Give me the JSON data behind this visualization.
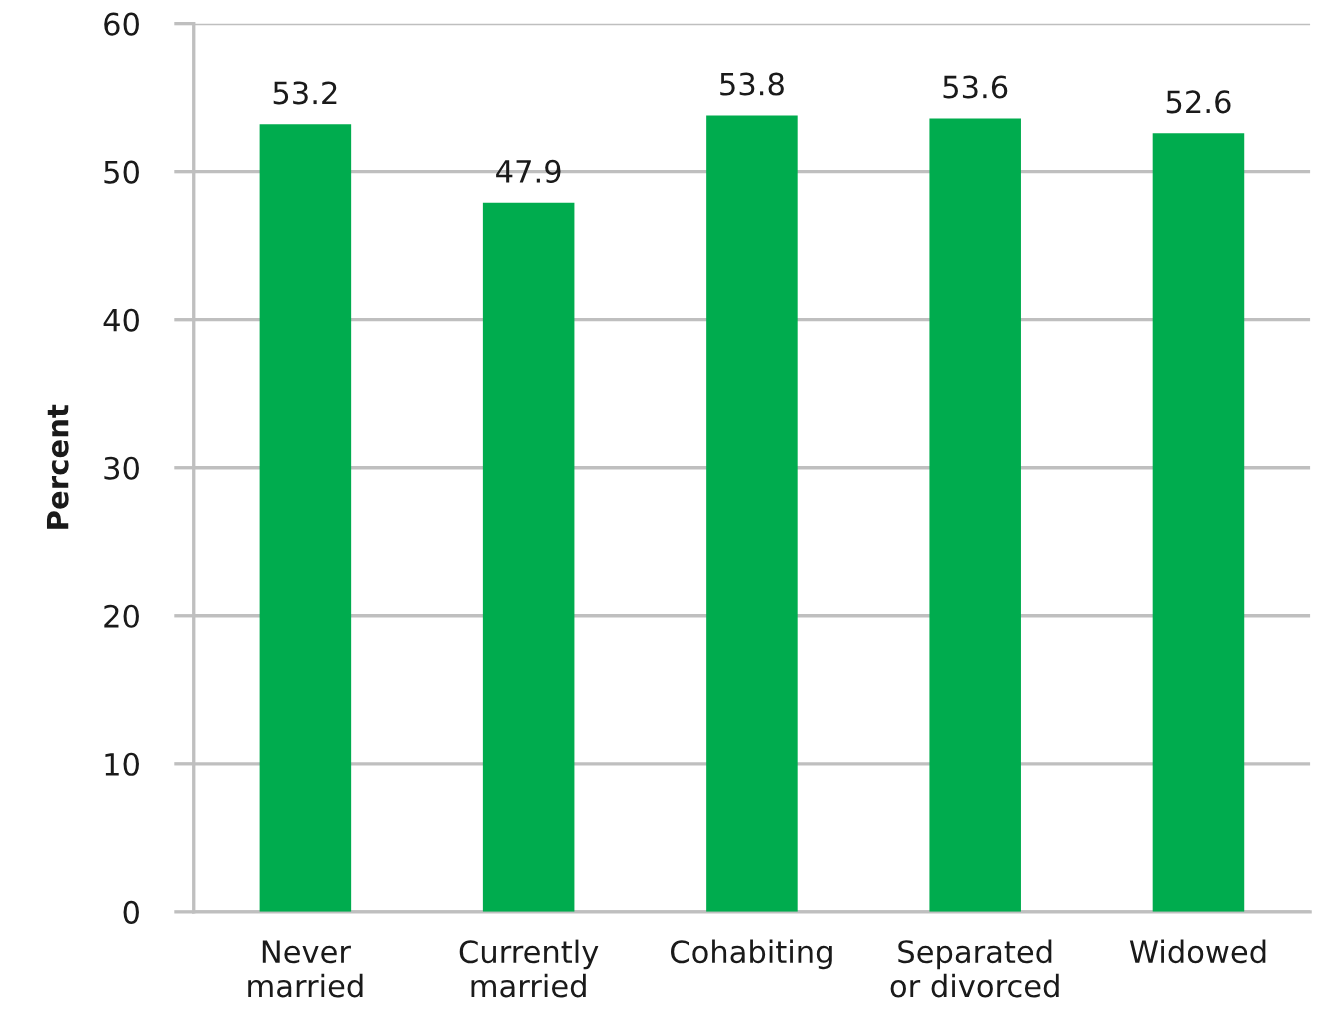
{
  "chart_data": {
    "type": "bar",
    "ylabel": "Percent",
    "categories": [
      "Never\nmarried",
      "Currently\nmarried",
      "Cohabiting",
      "Separated\nor divorced",
      "Widowed"
    ],
    "values": [
      53.2,
      47.9,
      53.8,
      53.6,
      52.6
    ],
    "color": "#00ac4e",
    "ylim": [
      0,
      60
    ],
    "yticks": [
      0,
      10,
      20,
      30,
      40,
      50,
      60
    ],
    "grid": "y",
    "data_labels": true
  }
}
